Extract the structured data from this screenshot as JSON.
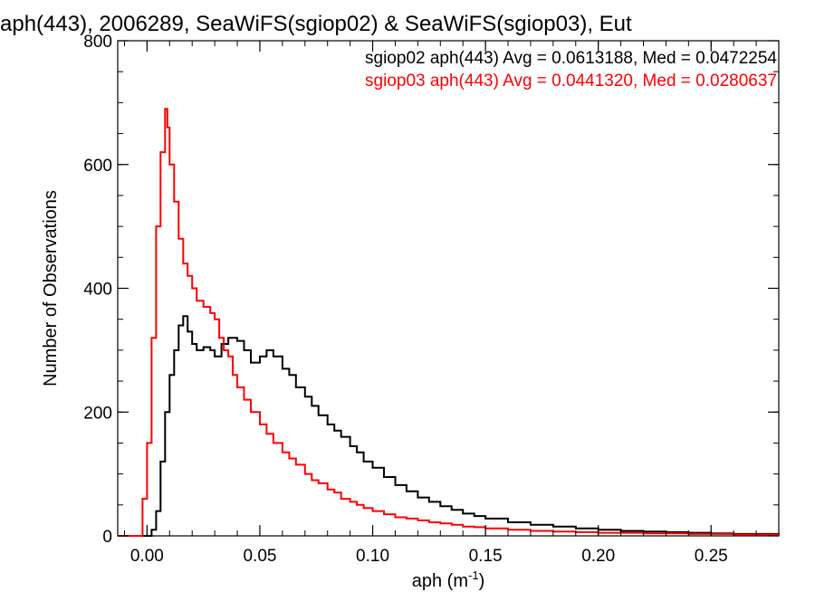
{
  "chart_data": {
    "type": "line",
    "title": "aph(443), 2006289, SeaWiFS(sgiop02) & SeaWiFS(sgiop03), Eut",
    "xlabel_main": "aph (m",
    "xlabel_sup": "-1",
    "xlabel_close": ")",
    "ylabel": "Number of Observations",
    "xlim": [
      -0.013,
      0.28
    ],
    "ylim": [
      0,
      800
    ],
    "x_ticks": [
      0.0,
      0.05,
      0.1,
      0.15,
      0.2,
      0.25
    ],
    "x_tick_labels": [
      "0.00",
      "0.05",
      "0.10",
      "0.15",
      "0.20",
      "0.25"
    ],
    "y_ticks": [
      0,
      200,
      400,
      600,
      800
    ],
    "y_tick_labels": [
      "0",
      "200",
      "400",
      "600",
      "800"
    ],
    "grid": false,
    "legend_position": "top-right",
    "series": [
      {
        "name": "sgiop02",
        "legend_text": "sgiop02 aph(443) Avg = 0.0613188, Med = 0.0472254",
        "color": "#000000",
        "points": [
          [
            -0.013,
            0
          ],
          [
            0.0,
            0
          ],
          [
            0.002,
            10
          ],
          [
            0.004,
            40
          ],
          [
            0.006,
            120
          ],
          [
            0.008,
            200
          ],
          [
            0.01,
            260
          ],
          [
            0.012,
            300
          ],
          [
            0.014,
            340
          ],
          [
            0.016,
            355
          ],
          [
            0.018,
            330
          ],
          [
            0.02,
            310
          ],
          [
            0.022,
            300
          ],
          [
            0.025,
            305
          ],
          [
            0.028,
            300
          ],
          [
            0.03,
            290
          ],
          [
            0.033,
            310
          ],
          [
            0.036,
            320
          ],
          [
            0.04,
            315
          ],
          [
            0.043,
            300
          ],
          [
            0.046,
            280
          ],
          [
            0.05,
            290
          ],
          [
            0.053,
            300
          ],
          [
            0.056,
            290
          ],
          [
            0.06,
            270
          ],
          [
            0.063,
            260
          ],
          [
            0.066,
            240
          ],
          [
            0.07,
            225
          ],
          [
            0.073,
            210
          ],
          [
            0.076,
            195
          ],
          [
            0.08,
            180
          ],
          [
            0.083,
            170
          ],
          [
            0.086,
            160
          ],
          [
            0.09,
            145
          ],
          [
            0.093,
            135
          ],
          [
            0.096,
            120
          ],
          [
            0.1,
            110
          ],
          [
            0.105,
            95
          ],
          [
            0.11,
            82
          ],
          [
            0.115,
            72
          ],
          [
            0.12,
            62
          ],
          [
            0.125,
            55
          ],
          [
            0.13,
            48
          ],
          [
            0.135,
            42
          ],
          [
            0.14,
            36
          ],
          [
            0.145,
            32
          ],
          [
            0.15,
            28
          ],
          [
            0.16,
            22
          ],
          [
            0.17,
            18
          ],
          [
            0.18,
            15
          ],
          [
            0.19,
            12
          ],
          [
            0.2,
            10
          ],
          [
            0.21,
            8
          ],
          [
            0.22,
            7
          ],
          [
            0.23,
            6
          ],
          [
            0.24,
            5
          ],
          [
            0.25,
            4
          ],
          [
            0.26,
            3
          ],
          [
            0.27,
            3
          ],
          [
            0.28,
            2
          ]
        ]
      },
      {
        "name": "sgiop03",
        "legend_text": "sgiop03 aph(443) Avg = 0.0441320, Med = 0.0280637",
        "color": "#ff0000",
        "points": [
          [
            -0.013,
            0
          ],
          [
            -0.003,
            0
          ],
          [
            -0.002,
            60
          ],
          [
            0.0,
            150
          ],
          [
            0.002,
            320
          ],
          [
            0.004,
            500
          ],
          [
            0.006,
            620
          ],
          [
            0.008,
            690
          ],
          [
            0.009,
            660
          ],
          [
            0.01,
            600
          ],
          [
            0.012,
            540
          ],
          [
            0.014,
            480
          ],
          [
            0.016,
            440
          ],
          [
            0.018,
            420
          ],
          [
            0.02,
            400
          ],
          [
            0.022,
            380
          ],
          [
            0.025,
            370
          ],
          [
            0.028,
            360
          ],
          [
            0.03,
            350
          ],
          [
            0.032,
            320
          ],
          [
            0.034,
            300
          ],
          [
            0.036,
            290
          ],
          [
            0.038,
            260
          ],
          [
            0.04,
            240
          ],
          [
            0.043,
            220
          ],
          [
            0.046,
            200
          ],
          [
            0.05,
            180
          ],
          [
            0.053,
            165
          ],
          [
            0.056,
            150
          ],
          [
            0.06,
            135
          ],
          [
            0.063,
            125
          ],
          [
            0.066,
            115
          ],
          [
            0.07,
            100
          ],
          [
            0.073,
            90
          ],
          [
            0.076,
            85
          ],
          [
            0.08,
            75
          ],
          [
            0.083,
            70
          ],
          [
            0.086,
            60
          ],
          [
            0.09,
            55
          ],
          [
            0.093,
            50
          ],
          [
            0.096,
            45
          ],
          [
            0.1,
            40
          ],
          [
            0.105,
            35
          ],
          [
            0.11,
            30
          ],
          [
            0.115,
            28
          ],
          [
            0.12,
            25
          ],
          [
            0.125,
            22
          ],
          [
            0.13,
            20
          ],
          [
            0.135,
            18
          ],
          [
            0.14,
            15
          ],
          [
            0.145,
            14
          ],
          [
            0.15,
            12
          ],
          [
            0.16,
            10
          ],
          [
            0.17,
            8
          ],
          [
            0.18,
            7
          ],
          [
            0.19,
            6
          ],
          [
            0.2,
            5
          ],
          [
            0.21,
            5
          ],
          [
            0.22,
            4
          ],
          [
            0.23,
            4
          ],
          [
            0.24,
            3
          ],
          [
            0.25,
            3
          ],
          [
            0.26,
            2
          ],
          [
            0.27,
            2
          ],
          [
            0.28,
            1
          ]
        ]
      }
    ]
  }
}
